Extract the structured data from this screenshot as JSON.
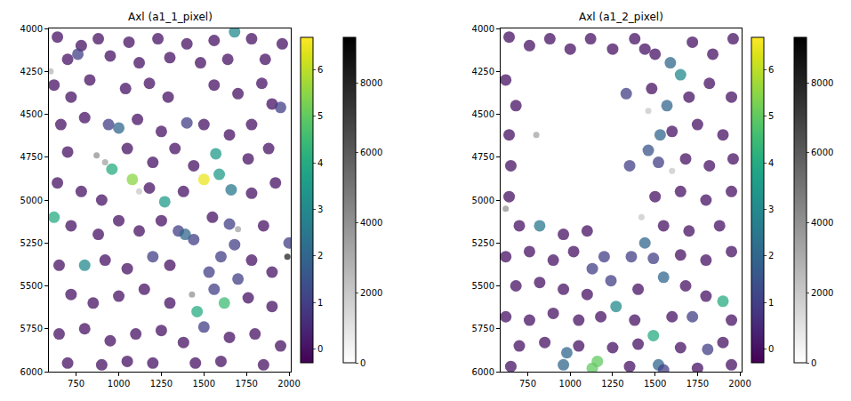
{
  "chart_data": [
    {
      "type": "scatter",
      "title": "Axl (a1_1_pixel)",
      "xlim": [
        590,
        2010
      ],
      "ylim": [
        6000,
        4000
      ],
      "xticks": [
        750,
        1000,
        1250,
        1500,
        1750,
        2000
      ],
      "yticks": [
        4000,
        4250,
        4500,
        4750,
        5000,
        5250,
        5500,
        5750,
        6000
      ],
      "grid": false,
      "cells": {
        "x": [
          640,
          700,
          780,
          880,
          950,
          1060,
          1120,
          1230,
          1300,
          1400,
          1480,
          1560,
          1640,
          1780,
          1860,
          1960,
          620,
          720,
          830,
          1040,
          1180,
          1290,
          1560,
          1700,
          1840,
          1900,
          660,
          800,
          1110,
          1250,
          1500,
          1650,
          1780,
          700,
          1050,
          1200,
          1330,
          1440,
          1760,
          1880,
          640,
          780,
          900,
          1180,
          1380,
          1780,
          1920,
          720,
          880,
          1000,
          1120,
          1250,
          1550,
          1850,
          650,
          920,
          1050,
          1300,
          1780,
          1900,
          720,
          850,
          1000,
          1150,
          1300,
          1760,
          1900,
          650,
          800,
          950,
          1100,
          1250,
          1380,
          1650,
          1800,
          1950,
          700,
          900,
          1050,
          1200,
          1450,
          1600,
          1850,
          1680,
          760,
          940,
          1000,
          1570,
          960,
          1080,
          1500,
          1590,
          1660,
          1270,
          620,
          1350,
          1650,
          1440,
          1390,
          1680,
          1530,
          1700,
          800,
          1560,
          1460,
          1620,
          1500,
          1200,
          1600,
          2000,
          1950,
          1400
        ],
        "y": [
          4050,
          4180,
          4100,
          4060,
          4160,
          4080,
          4200,
          4060,
          4170,
          4090,
          4200,
          4070,
          4180,
          4060,
          4180,
          4090,
          4330,
          4400,
          4300,
          4350,
          4320,
          4400,
          4330,
          4380,
          4320,
          4440,
          4560,
          4520,
          4530,
          4600,
          4560,
          4620,
          4560,
          4720,
          4700,
          4780,
          4700,
          4800,
          4760,
          4700,
          4900,
          4950,
          5000,
          4930,
          4950,
          4960,
          4900,
          5150,
          5200,
          5120,
          5180,
          5120,
          5100,
          5150,
          5380,
          5350,
          5400,
          5380,
          5350,
          5420,
          5550,
          5600,
          5560,
          5520,
          5600,
          5570,
          5620,
          5780,
          5750,
          5820,
          5780,
          5760,
          5830,
          5800,
          5780,
          5850,
          5950,
          5960,
          5940,
          5950,
          5950,
          5940,
          5960,
          4020,
          4150,
          4560,
          4580,
          4730,
          4820,
          4880,
          4880,
          4850,
          4940,
          5010,
          5100,
          5180,
          5140,
          5230,
          5200,
          5260,
          5420,
          5460,
          5380,
          5520,
          5650,
          5600,
          5740,
          5330,
          5330,
          5250,
          4460,
          4550
        ],
        "values": [
          0,
          0,
          0,
          0,
          0,
          0,
          0,
          0,
          0,
          0,
          0,
          0,
          0,
          0,
          0,
          0,
          0,
          0,
          0,
          0,
          0,
          0,
          0,
          0,
          0,
          0,
          0,
          0,
          0,
          0,
          0,
          0,
          0,
          0,
          0,
          0,
          0,
          0,
          0,
          0,
          0,
          0,
          0,
          0,
          0,
          0,
          0,
          0,
          0,
          0,
          0,
          0,
          0,
          0,
          0,
          0,
          0,
          0,
          0,
          0,
          0,
          0,
          0,
          0,
          0,
          0,
          0,
          0,
          0,
          0,
          0,
          0,
          0,
          0,
          0,
          0,
          0,
          0,
          0,
          0,
          0,
          0,
          0,
          3,
          1,
          1,
          2,
          3.5,
          4,
          5.5,
          6.5,
          3.5,
          2.5,
          3.5,
          4,
          1,
          1,
          1,
          2,
          1,
          1,
          1,
          3,
          1,
          4,
          4.5,
          1,
          1,
          1,
          1,
          1,
          1
        ]
      },
      "color_range": [
        -0.3,
        6.7
      ],
      "color_ticks": [
        0,
        1,
        2,
        3,
        4,
        5,
        6
      ],
      "background": {
        "x": [
          870,
          920,
          1990,
          1430,
          1700,
          1120,
          600
        ],
        "y": [
          4740,
          4780,
          5330,
          5550,
          5170,
          4950,
          4250
        ],
        "values": [
          3000,
          2500,
          6000,
          3000,
          2500,
          1500,
          2000
        ]
      },
      "background_range": [
        0,
        9300
      ],
      "background_ticks": [
        0,
        2000,
        4000,
        6000,
        8000
      ]
    },
    {
      "type": "scatter",
      "title": "Axl (a1_2_pixel)",
      "xlim": [
        590,
        2010
      ],
      "ylim": [
        6000,
        4000
      ],
      "xticks": [
        750,
        1000,
        1250,
        1500,
        1750,
        2000
      ],
      "yticks": [
        4000,
        4250,
        4500,
        4750,
        5000,
        5250,
        5500,
        5750,
        6000
      ],
      "grid": false,
      "cells": {
        "x": [
          640,
          760,
          880,
          1000,
          1120,
          1250,
          1380,
          1500,
          1720,
          1840,
          1960,
          620,
          680,
          1480,
          1700,
          1820,
          1950,
          640,
          1600,
          1750,
          1900,
          650,
          1680,
          1820,
          1960,
          640,
          1500,
          1650,
          1800,
          1950,
          700,
          960,
          1100,
          1550,
          1700,
          1880,
          620,
          760,
          900,
          1020,
          1650,
          1800,
          1950,
          680,
          820,
          960,
          1100,
          1400,
          1680,
          1800,
          620,
          760,
          900,
          1050,
          1180,
          1380,
          1600,
          1950,
          700,
          850,
          1050,
          1250,
          1400,
          1650,
          1900,
          650,
          1350,
          1750,
          1950,
          1440,
          1330,
          1650,
          1590,
          1570,
          1530,
          1460,
          1350,
          1520,
          820,
          1440,
          1200,
          1360,
          1490,
          1550,
          1130,
          1240,
          1270,
          1490,
          1900,
          980,
          960,
          1130,
          1160,
          1520,
          1720,
          1810,
          1550
        ],
        "y": [
          4050,
          4100,
          4060,
          4120,
          4060,
          4120,
          4060,
          4150,
          4080,
          4150,
          4060,
          4300,
          4450,
          4350,
          4400,
          4320,
          4400,
          4620,
          4600,
          4560,
          4620,
          4800,
          4760,
          4800,
          4760,
          4980,
          4980,
          4950,
          5000,
          4950,
          5150,
          5200,
          5180,
          5150,
          5180,
          5150,
          5330,
          5300,
          5350,
          5300,
          5320,
          5350,
          5300,
          5500,
          5480,
          5520,
          5550,
          5520,
          5500,
          5560,
          5680,
          5700,
          5660,
          5700,
          5680,
          5700,
          5680,
          5700,
          5850,
          5830,
          5850,
          5860,
          5840,
          5860,
          5830,
          5970,
          5970,
          5980,
          5960,
          4120,
          4380,
          4270,
          4200,
          4450,
          4620,
          4710,
          4800,
          4780,
          5150,
          5250,
          5330,
          5330,
          5340,
          5450,
          5400,
          5470,
          5620,
          5790,
          5590,
          5890,
          5960,
          5980,
          5940,
          5960,
          5680,
          5870,
          5990
        ],
        "values": [
          0,
          0,
          0,
          0,
          0,
          0,
          0,
          0,
          0,
          0,
          0,
          0,
          0,
          0,
          0,
          0,
          0,
          0,
          0,
          0,
          0,
          0,
          0,
          0,
          0,
          0,
          0,
          0,
          0,
          0,
          0,
          0,
          0,
          0,
          0,
          0,
          0,
          0,
          0,
          0,
          0,
          0,
          0,
          0,
          0,
          0,
          0,
          0,
          0,
          0,
          0,
          0,
          0,
          0,
          0,
          0,
          0,
          0,
          0,
          0,
          0,
          0,
          0,
          0,
          0,
          0,
          0,
          0,
          0,
          0,
          1,
          3,
          2,
          2,
          2,
          1.5,
          1,
          1,
          2.5,
          2,
          1,
          1,
          1,
          2,
          1,
          1,
          3,
          4,
          4,
          2,
          2,
          5,
          5,
          2,
          1,
          1,
          1
        ]
      },
      "color_range": [
        -0.3,
        6.7
      ],
      "color_ticks": [
        0,
        1,
        2,
        3,
        4,
        5,
        6
      ],
      "background": {
        "x": [
          800,
          620,
          1460,
          1600,
          1420
        ],
        "y": [
          4620,
          5050,
          4480,
          4830,
          5100
        ],
        "values": [
          2500,
          3000,
          1500,
          1500,
          1500
        ]
      },
      "background_range": [
        0,
        9300
      ],
      "background_ticks": [
        0,
        2000,
        4000,
        6000,
        8000
      ]
    }
  ]
}
